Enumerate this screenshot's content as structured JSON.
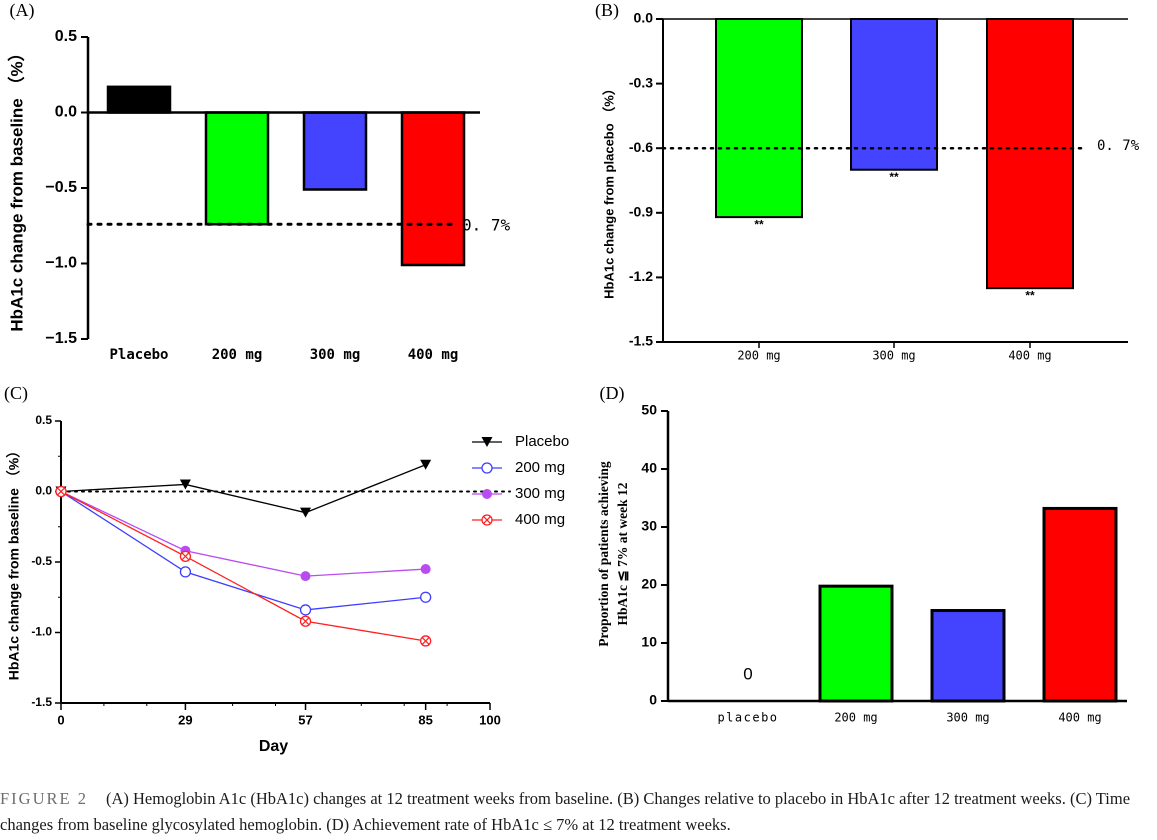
{
  "chart_data": [
    {
      "panel": "(A)",
      "type": "bar",
      "ylabel": "HbA1c change from baseline （%）",
      "ylim": [
        -1.5,
        0.5
      ],
      "yticks": [
        "0.5",
        "0.0",
        "−0.5",
        "−1.0",
        "−1.5"
      ],
      "yticks_values": [
        0.5,
        0.0,
        -0.5,
        -1.0,
        -1.5
      ],
      "categories": [
        "Placebo",
        "200 mg",
        "300 mg",
        "400 mg"
      ],
      "values": [
        0.17,
        -0.74,
        -0.51,
        -1.01
      ],
      "colors": [
        "#000000",
        "#00ff00",
        "#4444ff",
        "#ff0000"
      ],
      "reference_line": {
        "value": -0.74,
        "label": "0. 7%"
      }
    },
    {
      "panel": "(B)",
      "type": "bar",
      "ylabel": "HbA1c change from  placebo （%）",
      "ylim": [
        -1.5,
        0.0
      ],
      "yticks": [
        "0.0",
        "-0.3",
        "-0.6",
        "-0.9",
        "-1.2",
        "-1.5"
      ],
      "yticks_values": [
        0.0,
        -0.3,
        -0.6,
        -0.9,
        -1.2,
        -1.5
      ],
      "categories": [
        "200 mg",
        "300 mg",
        "400 mg"
      ],
      "values": [
        -0.92,
        -0.7,
        -1.25
      ],
      "colors": [
        "#00ff00",
        "#4444ff",
        "#ff0000"
      ],
      "significance": [
        "**",
        "**",
        "**"
      ],
      "reference_line": {
        "value": -0.6,
        "label": "0. 7%"
      }
    },
    {
      "panel": "(C)",
      "type": "line",
      "xlabel": "Day",
      "ylabel": "HbA1c change from baseline （%）",
      "xlim": [
        0,
        100
      ],
      "ylim": [
        -1.5,
        0.5
      ],
      "xticks": [
        "0",
        "29",
        "57",
        "85",
        "100"
      ],
      "xticks_values": [
        0,
        29,
        57,
        85,
        100
      ],
      "yticks": [
        "0.5",
        "0.0",
        "-0.5",
        "-1.0",
        "-1.5"
      ],
      "yticks_values": [
        0.5,
        0.0,
        -0.5,
        -1.0,
        -1.5
      ],
      "x": [
        0,
        29,
        57,
        85
      ],
      "series": [
        {
          "name": "Placebo",
          "values": [
            0.0,
            0.05,
            -0.15,
            0.19
          ],
          "color": "#000000",
          "marker": "triangle-down"
        },
        {
          "name": "200 mg",
          "values": [
            0.0,
            -0.57,
            -0.84,
            -0.75
          ],
          "color": "#3d3dff",
          "marker": "open-circle"
        },
        {
          "name": "300 mg",
          "values": [
            0.0,
            -0.42,
            -0.6,
            -0.55
          ],
          "color": "#b84cf0",
          "marker": "filled-circle"
        },
        {
          "name": "400 mg",
          "values": [
            0.0,
            -0.46,
            -0.92,
            -1.06
          ],
          "color": "#ff2020",
          "marker": "crossed-circle"
        }
      ],
      "reference_line": {
        "value": 0.0
      }
    },
    {
      "panel": "(D)",
      "type": "bar",
      "ylabel_line1": "Proportion of patients achieving",
      "ylabel_line2": "HbA1c ≦ 7% at week 12",
      "ylim": [
        0,
        50
      ],
      "yticks": [
        "50",
        "40",
        "30",
        "20",
        "10",
        "0"
      ],
      "yticks_values": [
        50,
        40,
        30,
        20,
        10,
        0
      ],
      "categories": [
        "placebo",
        "200 mg",
        "300 mg",
        "400 mg"
      ],
      "values": [
        0,
        19.8,
        15.6,
        33.2
      ],
      "colors": [
        "#ffffff",
        "#00ff00",
        "#4444ff",
        "#ff0000"
      ],
      "data_labels": [
        "0",
        "",
        "",
        ""
      ]
    }
  ],
  "caption": {
    "label": "FIGURE 2",
    "text": "(A) Hemoglobin A1c (HbA1c) changes at 12 treatment weeks from baseline. (B) Changes relative to placebo in HbA1c after 12 treatment weeks. (C) Time changes from baseline glycosylated hemoglobin. (D) Achievement rate of HbA1c ≤ 7% at 12 treatment weeks."
  }
}
